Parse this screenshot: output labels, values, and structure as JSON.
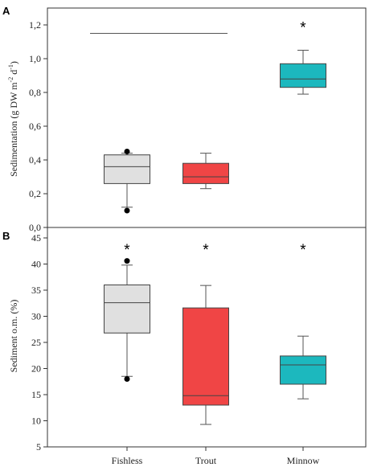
{
  "chart_data": [
    {
      "type": "box",
      "panel_label": "A",
      "ylabel_main": "Sedimentation (g DW m",
      "ylabel_exp1": "-2",
      "ylabel_mid": " d",
      "ylabel_exp2": "-1",
      "ylabel_end": ")",
      "ylim": [
        0,
        1.3
      ],
      "yticks": [
        "0,0",
        "0,2",
        "0,4",
        "0,6",
        "0,8",
        "1,0",
        "1,2"
      ],
      "ytick_values": [
        0,
        0.2,
        0.4,
        0.6,
        0.8,
        1.0,
        1.2
      ],
      "categories": [
        "Fishless",
        "Trout",
        "Minnow"
      ],
      "bracket": {
        "from": 0,
        "to": 1,
        "y": 1.15
      },
      "boxes": [
        {
          "category": "Fishless",
          "whisker_low": 0.12,
          "q1": 0.26,
          "median": 0.36,
          "q3": 0.43,
          "whisker_high": 0.44,
          "outliers": [
            0.1,
            0.45
          ],
          "color": "#e0e0e0",
          "significance": ""
        },
        {
          "category": "Trout",
          "whisker_low": 0.23,
          "q1": 0.26,
          "median": 0.3,
          "q3": 0.38,
          "whisker_high": 0.44,
          "outliers": [],
          "color": "#f04545",
          "significance": ""
        },
        {
          "category": "Minnow",
          "whisker_low": 0.79,
          "q1": 0.83,
          "median": 0.88,
          "q3": 0.97,
          "whisker_high": 1.05,
          "outliers": [],
          "color": "#1cb8be",
          "significance": "*"
        }
      ]
    },
    {
      "type": "box",
      "panel_label": "B",
      "ylabel": "Sediment o.m. (%)",
      "ylim": [
        5,
        47
      ],
      "yticks": [
        "5",
        "10",
        "15",
        "20",
        "25",
        "30",
        "35",
        "40",
        "45"
      ],
      "ytick_values": [
        5,
        10,
        15,
        20,
        25,
        30,
        35,
        40,
        45
      ],
      "categories": [
        "Fishless",
        "Trout",
        "Minnow"
      ],
      "boxes": [
        {
          "category": "Fishless",
          "whisker_low": 18.5,
          "q1": 26.8,
          "median": 32.6,
          "q3": 36.0,
          "whisker_high": 39.8,
          "outliers": [
            18.0,
            40.6
          ],
          "color": "#e0e0e0",
          "significance": "*"
        },
        {
          "category": "Trout",
          "whisker_low": 9.3,
          "q1": 13.0,
          "median": 14.8,
          "q3": 31.6,
          "whisker_high": 35.9,
          "outliers": [],
          "color": "#f04545",
          "significance": "*"
        },
        {
          "category": "Minnow",
          "whisker_low": 14.2,
          "q1": 17.0,
          "median": 20.7,
          "q3": 22.4,
          "whisker_high": 26.2,
          "outliers": [],
          "color": "#1cb8be",
          "significance": "*"
        }
      ]
    }
  ]
}
